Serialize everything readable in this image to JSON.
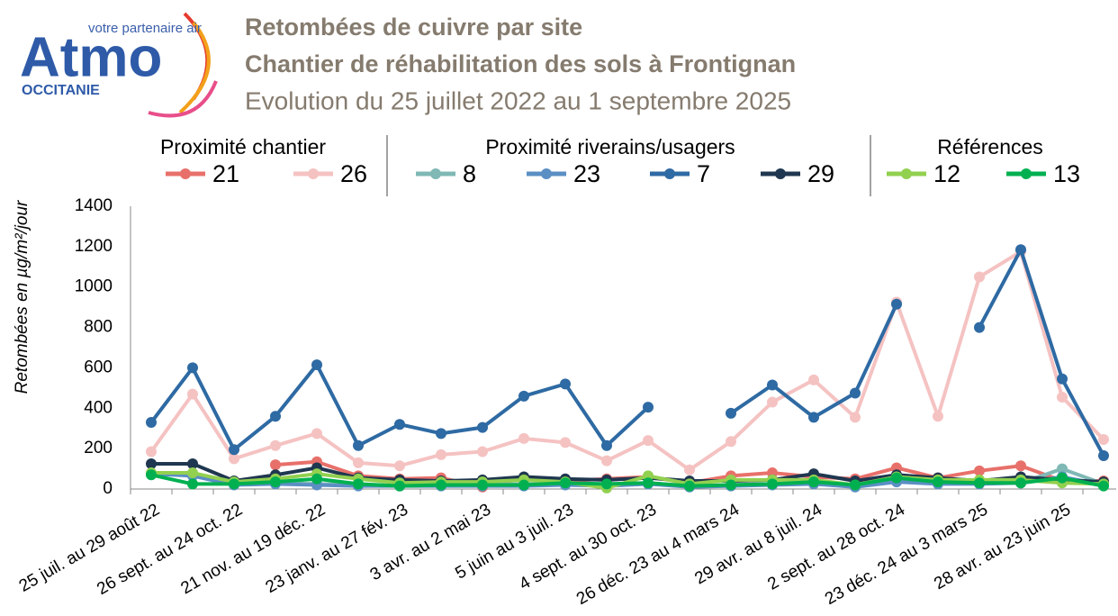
{
  "logo": {
    "tagline": "votre partenaire air",
    "name": "Atmo",
    "region": "OCCITANIE"
  },
  "chart_data": {
    "type": "line",
    "title": "Retombées de cuivre par site",
    "subtitle": "Chantier de réhabilitation des sols à Frontignan",
    "subtitle2": "Evolution du 25 juillet 2022 au 1 septembre 2025",
    "y_label": "Retombées en µg/m²/jour",
    "legend_groups": [
      "Proximité chantier",
      "Proximité riverains/usagers",
      "Références"
    ],
    "categories": [
      "25 juil. au 29 août 22",
      null,
      "26 sept. au 24 oct. 22",
      null,
      "21 nov.  au 19 déc. 22",
      null,
      "23 janv. au 27 fév. 23",
      null,
      "3 avr. au 2 mai 23",
      null,
      "5 juin au 3 juil. 23",
      null,
      "4 sept. au 30 oct. 23",
      null,
      "26 déc. 23 au 4 mars 24",
      null,
      "29 avr. au 8 juil. 24",
      null,
      "2 sept. au 28 oct. 24",
      null,
      "23 déc. 24 au 3 mars 25",
      null,
      "28 avr. au 23 juin 25",
      null
    ],
    "ylim": [
      0,
      1400
    ],
    "yticks": [
      0,
      200,
      400,
      600,
      800,
      1000,
      1200,
      1400
    ],
    "series": [
      {
        "name": "21",
        "color": "#e8706a",
        "values": [
          null,
          null,
          null,
          120,
          135,
          65,
          50,
          55,
          10,
          55,
          40,
          50,
          60,
          30,
          65,
          80,
          60,
          50,
          105,
          55,
          90,
          115,
          40,
          40
        ]
      },
      {
        "name": "26",
        "color": "#f5c2c2",
        "values": [
          185,
          470,
          150,
          215,
          275,
          130,
          115,
          170,
          185,
          250,
          230,
          140,
          240,
          95,
          235,
          430,
          540,
          355,
          925,
          360,
          1050,
          1175,
          455,
          245
        ]
      },
      {
        "name": "8",
        "color": "#7fb8b5",
        "values": [
          75,
          70,
          25,
          30,
          25,
          20,
          15,
          20,
          20,
          25,
          25,
          20,
          30,
          15,
          20,
          25,
          30,
          15,
          45,
          30,
          30,
          30,
          100,
          25
        ]
      },
      {
        "name": "23",
        "color": "#5b8fc4",
        "values": [
          75,
          65,
          20,
          25,
          20,
          15,
          15,
          15,
          15,
          15,
          20,
          15,
          25,
          10,
          15,
          20,
          25,
          10,
          35,
          25,
          25,
          30,
          60,
          20
        ]
      },
      {
        "name": "7",
        "color": "#2e6aa3",
        "values": [
          330,
          600,
          195,
          360,
          615,
          215,
          320,
          275,
          305,
          460,
          520,
          215,
          405,
          null,
          375,
          515,
          355,
          475,
          915,
          null,
          800,
          1185,
          545,
          165
        ]
      },
      {
        "name": "29",
        "color": "#1f3750",
        "values": [
          125,
          125,
          40,
          70,
          105,
          55,
          45,
          40,
          45,
          60,
          50,
          45,
          55,
          40,
          40,
          45,
          75,
          40,
          70,
          55,
          40,
          60,
          45,
          35
        ]
      },
      {
        "name": "12",
        "color": "#92d050",
        "values": [
          80,
          80,
          35,
          50,
          75,
          50,
          30,
          35,
          35,
          45,
          35,
          5,
          65,
          25,
          45,
          45,
          45,
          20,
          60,
          45,
          45,
          45,
          30,
          25
        ]
      },
      {
        "name": "13",
        "color": "#00b050",
        "values": [
          70,
          25,
          25,
          35,
          50,
          25,
          15,
          20,
          20,
          20,
          30,
          25,
          30,
          15,
          20,
          25,
          35,
          20,
          55,
          35,
          30,
          30,
          55,
          15
        ]
      }
    ]
  }
}
